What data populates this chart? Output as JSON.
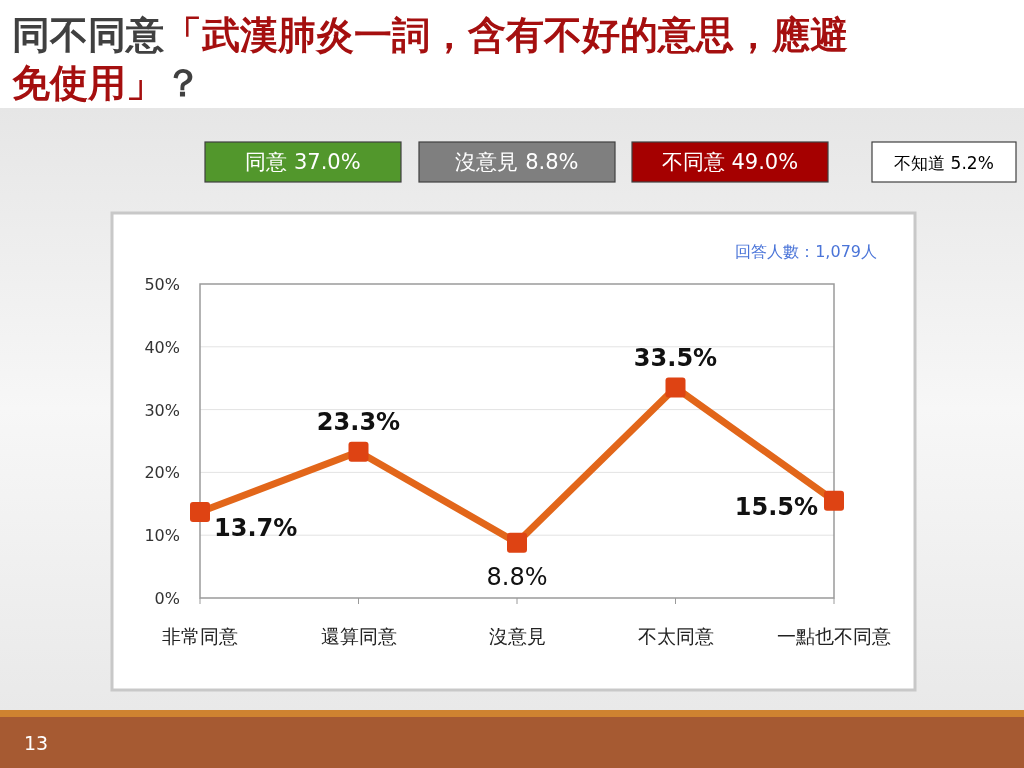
{
  "chart_data": {
    "type": "line",
    "title": "同不同意「武漢肺炎一詞，含有不好的意思，應避免使用」？",
    "categories": [
      "非常同意",
      "還算同意",
      "沒意見",
      "不太同意",
      "一點也不同意"
    ],
    "series": [
      {
        "color": "#e2661a",
        "values": [
          13.7,
          23.3,
          8.8,
          33.5,
          15.5
        ]
      }
    ],
    "ylim": [
      0,
      50
    ],
    "yticks": [
      {
        "value": 0,
        "label": "0%"
      },
      {
        "value": 10,
        "label": "10%"
      },
      {
        "value": 20,
        "label": "20%"
      },
      {
        "value": 30,
        "label": "30%"
      },
      {
        "value": 40,
        "label": "40%"
      },
      {
        "value": 50,
        "label": "50%"
      }
    ],
    "value_labels": [
      "13.7%",
      "23.3%",
      "8.8%",
      "33.5%",
      "15.5%"
    ],
    "grid": "y",
    "marker": "square",
    "line_style": "solid",
    "annotations": [
      "同意 37.0%",
      "沒意見 8.8%",
      "不同意 49.0%",
      "不知道 5.2%",
      "回答人數：1,079人",
      "13"
    ]
  }
}
